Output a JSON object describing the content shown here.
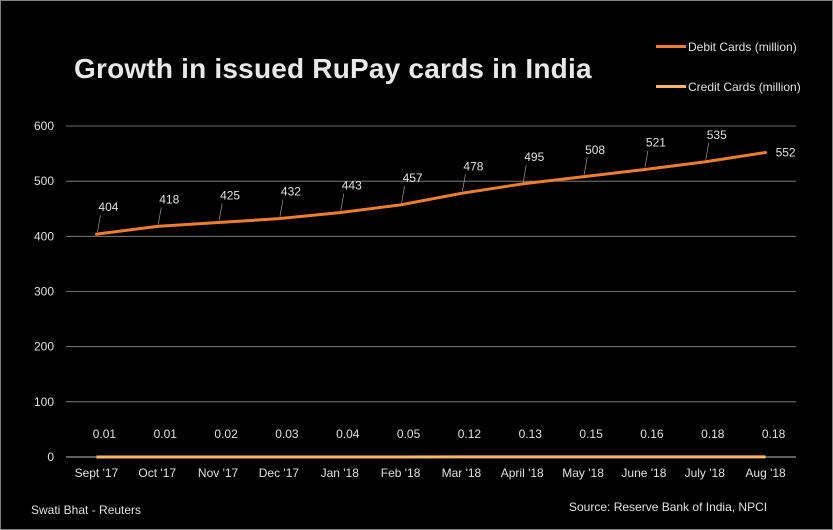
{
  "colors": {
    "background": "#000000",
    "debit": "#ed7d31",
    "credit": "#ffb766",
    "grid": "#bfbfbf",
    "text": "#e0e0e0"
  },
  "footer": {
    "author": "Swati Bhat - Reuters",
    "source": "Source:  Reserve  Bank of India, NPCI"
  },
  "chart_data": {
    "type": "line",
    "title": "Growth in issued RuPay cards in India",
    "xlabel": "",
    "ylabel": "",
    "ylim": [
      0,
      600
    ],
    "yticks": [
      0,
      100,
      200,
      300,
      400,
      500,
      600
    ],
    "grid": true,
    "legend": "top-right",
    "categories": [
      "Sept '17",
      "Oct '17",
      "Nov '17",
      "Dec '17",
      "Jan '18",
      "Feb '18",
      "Mar '18",
      "April '18",
      "May '18",
      "June '18",
      "July '18",
      "Aug '18"
    ],
    "series": [
      {
        "name": "Debit Cards (million)",
        "values": [
          404,
          418,
          425,
          432,
          443,
          457,
          478,
          495,
          508,
          521,
          535,
          552
        ],
        "labels": [
          "404",
          "418",
          "425",
          "432",
          "443",
          "457",
          "478",
          "495",
          "508",
          "521",
          "535",
          "552"
        ]
      },
      {
        "name": "Credit Cards (million)",
        "values": [
          0.01,
          0.01,
          0.02,
          0.03,
          0.04,
          0.05,
          0.12,
          0.13,
          0.15,
          0.16,
          0.18,
          0.18
        ],
        "labels": [
          "0.01",
          "0.01",
          "0.02",
          "0.03",
          "0.04",
          "0.05",
          "0.12",
          "0.13",
          "0.15",
          "0.16",
          "0.18",
          "0.18"
        ]
      }
    ]
  }
}
